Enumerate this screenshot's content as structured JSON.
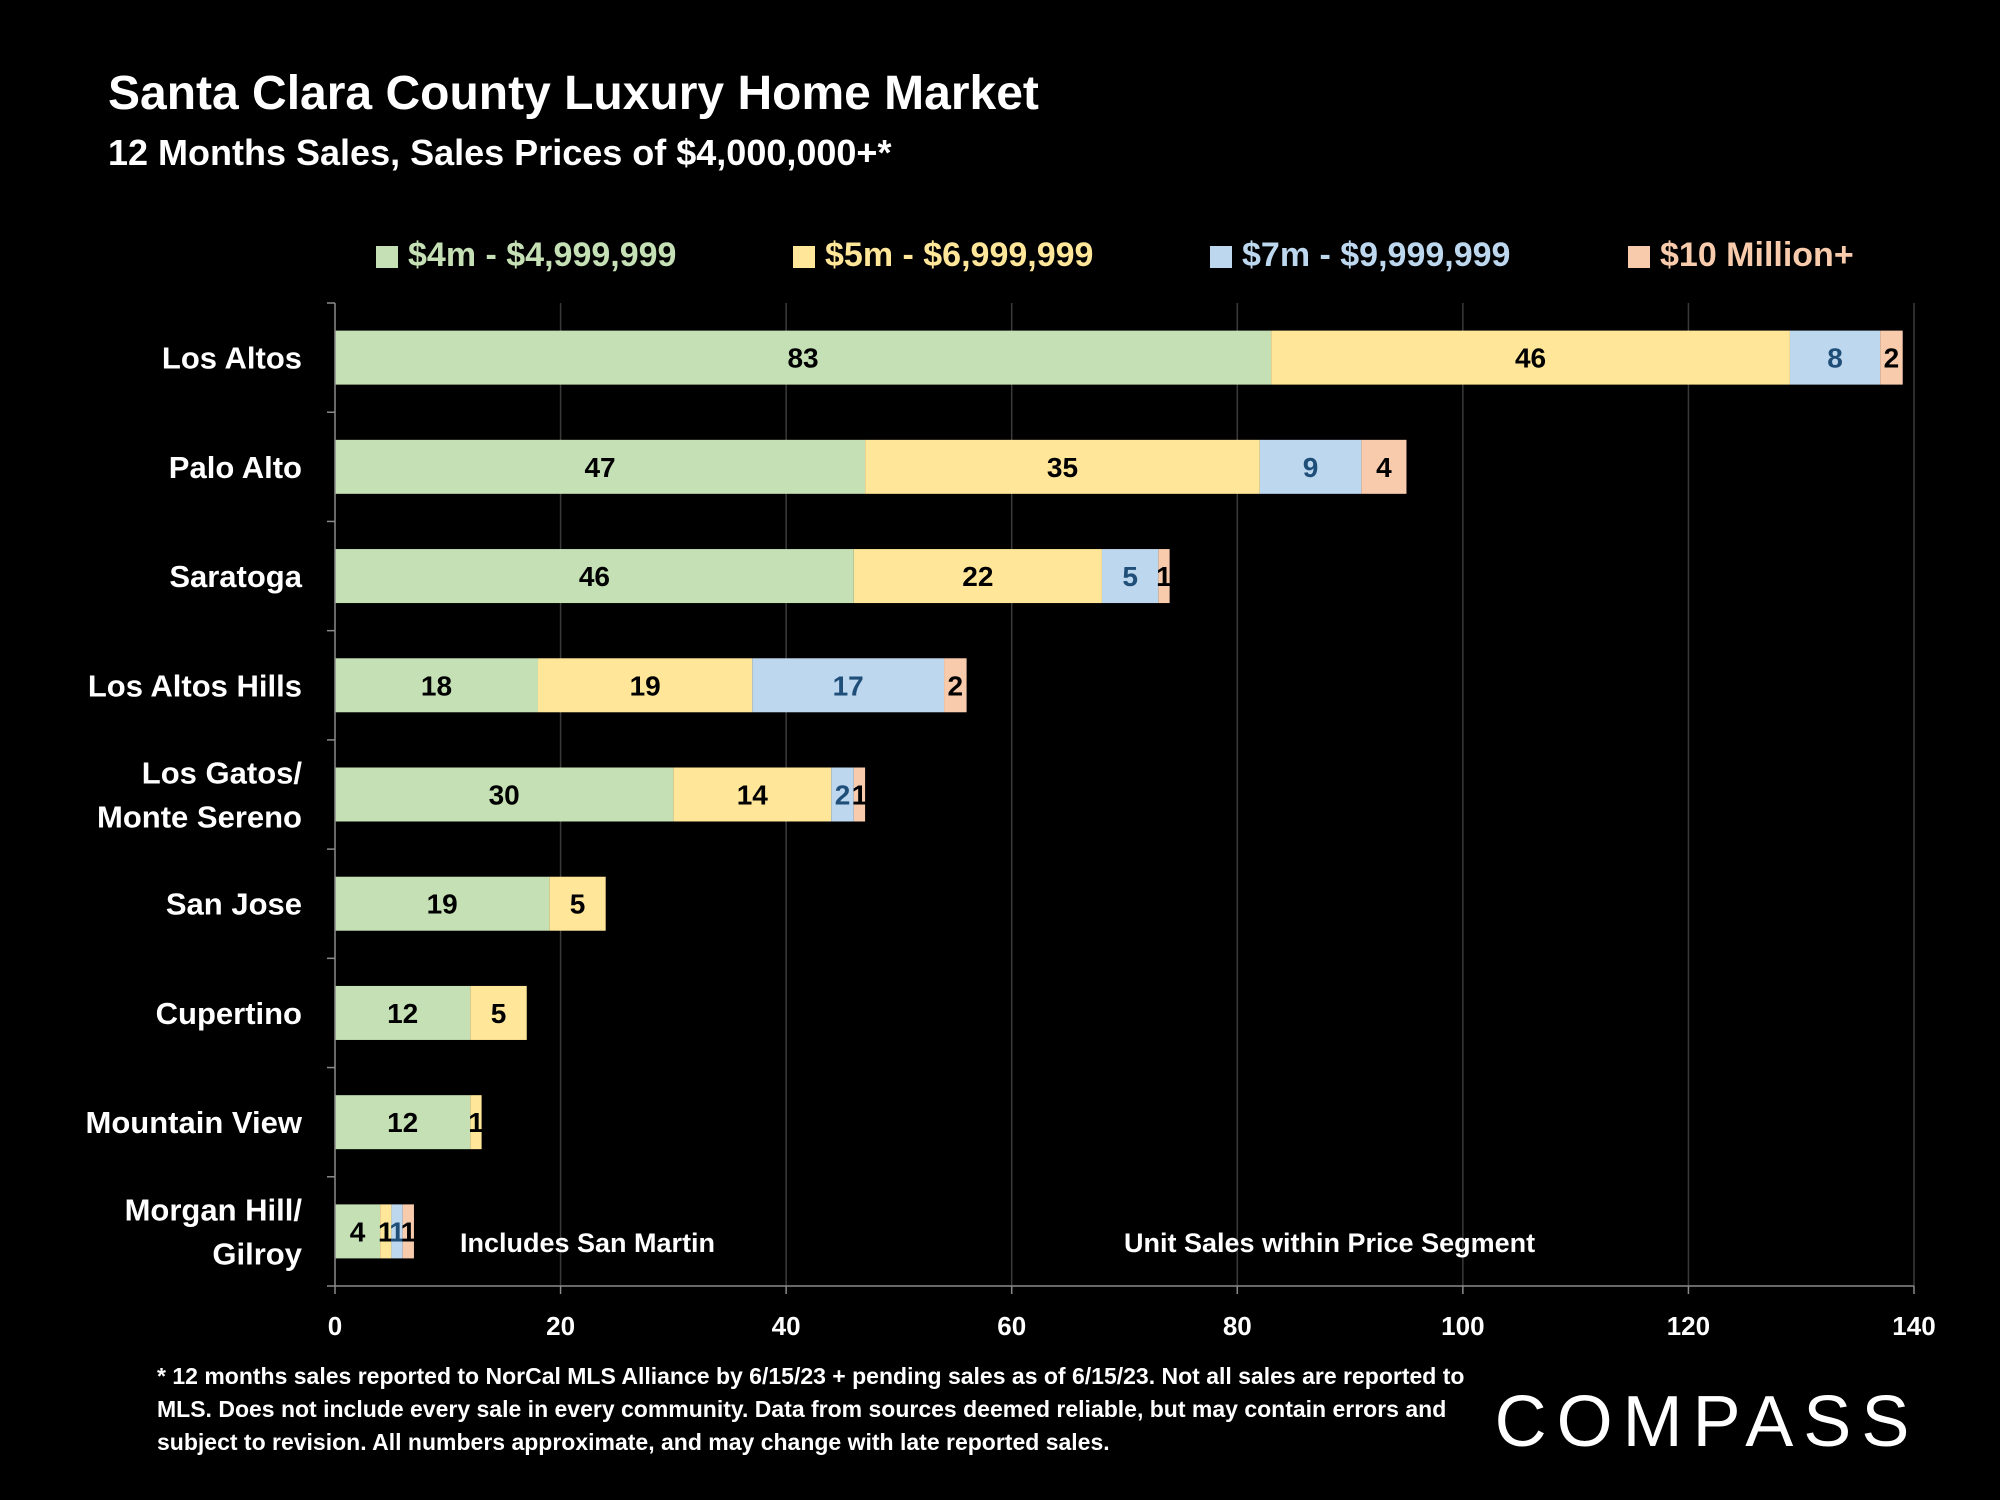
{
  "chart_data": {
    "type": "bar",
    "orientation": "horizontal",
    "stacked": true,
    "title": "Santa Clara County Luxury Home Market",
    "subtitle": "12 Months Sales, Sales Prices of $4,000,000+*",
    "categories": [
      "Los Altos",
      "Palo Alto",
      "Saratoga",
      "Los Altos Hills",
      "Los Gatos/\nMonte Sereno",
      "San Jose",
      "Cupertino",
      "Mountain View",
      "Morgan Hill/\nGilroy"
    ],
    "series": [
      {
        "name": "$4m - $4,999,999",
        "color": "#c5e0b4",
        "label_color": "#000000",
        "values": [
          83,
          47,
          46,
          18,
          30,
          19,
          12,
          12,
          4
        ]
      },
      {
        "name": "$5m - $6,999,999",
        "color": "#ffe699",
        "label_color": "#000000",
        "values": [
          46,
          35,
          22,
          19,
          14,
          5,
          5,
          1,
          1
        ]
      },
      {
        "name": "$7m - $9,999,999",
        "color": "#bdd7ee",
        "label_color": "#1f4e79",
        "values": [
          8,
          9,
          5,
          17,
          2,
          0,
          0,
          0,
          1
        ]
      },
      {
        "name": "$10 Million+",
        "color": "#f8cbad",
        "label_color": "#000000",
        "values": [
          2,
          4,
          1,
          2,
          1,
          0,
          0,
          0,
          1
        ]
      }
    ],
    "xlim": [
      0,
      140
    ],
    "xticks": [
      0,
      20,
      40,
      60,
      80,
      100,
      120,
      140
    ],
    "grid": true,
    "legend": "top",
    "annotations": [
      "Includes San Martin",
      "Unit Sales within Price Segment"
    ]
  },
  "footnote": "* 12 months sales reported to NorCal MLS Alliance by 6/15/23 + pending sales as of 6/15/23. Not all sales are reported to MLS. Does not include every sale in every community. Data from  sources deemed reliable, but may contain errors and subject to revision. All numbers approximate, and may change with late reported sales.",
  "logo": {
    "text": "COMPASS"
  }
}
